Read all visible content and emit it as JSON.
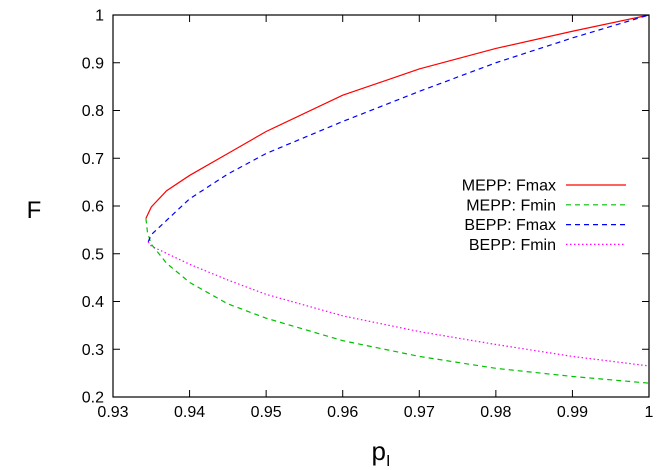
{
  "chart_data": {
    "type": "line",
    "title": "",
    "xlabel": "p",
    "xlabel_sub": "I",
    "ylabel": "F",
    "xlim": [
      0.93,
      1.0
    ],
    "ylim": [
      0.2,
      1.0
    ],
    "xticks": [
      "0.93",
      "0.94",
      "0.95",
      "0.96",
      "0.97",
      "0.98",
      "0.99",
      "1"
    ],
    "yticks": [
      "0.2",
      "0.3",
      "0.4",
      "0.5",
      "0.6",
      "0.7",
      "0.8",
      "0.9",
      "1"
    ],
    "grid": false,
    "legend_position": "right",
    "series": [
      {
        "name": "MEPP: Fmax",
        "color": "#ff0000",
        "dash": "solid",
        "x": [
          0.9343,
          0.935,
          0.937,
          0.94,
          0.945,
          0.95,
          0.96,
          0.97,
          0.98,
          0.99,
          1.0
        ],
        "y": [
          0.574,
          0.598,
          0.632,
          0.664,
          0.71,
          0.756,
          0.832,
          0.887,
          0.93,
          0.966,
          1.0
        ]
      },
      {
        "name": "MEPP: Fmin",
        "color": "#00c000",
        "dash": "dashed",
        "x": [
          0.9343,
          0.9345,
          0.935,
          0.937,
          0.94,
          0.945,
          0.95,
          0.96,
          0.97,
          0.98,
          0.99,
          1.0
        ],
        "y": [
          0.574,
          0.545,
          0.52,
          0.48,
          0.44,
          0.395,
          0.365,
          0.318,
          0.285,
          0.26,
          0.243,
          0.229
        ]
      },
      {
        "name": "BEPP: Fmax",
        "color": "#0000ff",
        "dash": "dashed",
        "x": [
          0.9346,
          0.935,
          0.94,
          0.945,
          0.95,
          0.96,
          0.97,
          0.98,
          0.99,
          1.0
        ],
        "y": [
          0.525,
          0.54,
          0.615,
          0.667,
          0.71,
          0.777,
          0.84,
          0.9,
          0.952,
          1.0
        ]
      },
      {
        "name": "BEPP: Fmin",
        "color": "#ff00ff",
        "dash": "dotted",
        "x": [
          0.9346,
          0.935,
          0.94,
          0.945,
          0.95,
          0.96,
          0.97,
          0.98,
          0.99,
          1.0
        ],
        "y": [
          0.525,
          0.516,
          0.478,
          0.445,
          0.415,
          0.37,
          0.337,
          0.31,
          0.285,
          0.265
        ]
      }
    ]
  }
}
